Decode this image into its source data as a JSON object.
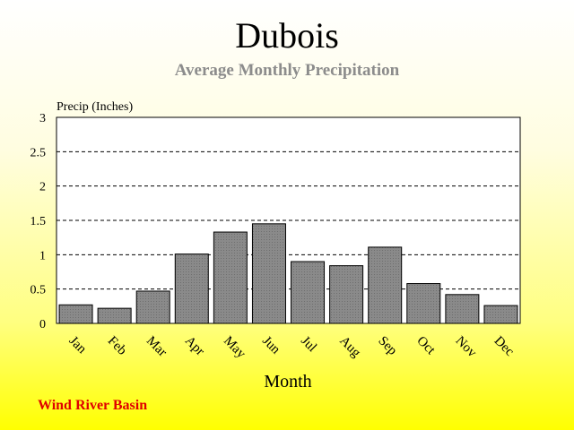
{
  "title": "Dubois",
  "subtitle": "Average Monthly Precipitation",
  "footer": "Wind River Basin",
  "chart_data": {
    "type": "bar",
    "title": "Dubois",
    "subtitle": "Average Monthly Precipitation",
    "xlabel": "Month",
    "ylabel": "Precip (Inches)",
    "ylim": [
      0,
      3
    ],
    "yticks": [
      0,
      0.5,
      1,
      1.5,
      2,
      2.5,
      3
    ],
    "ytick_labels": [
      "0",
      "0.5",
      "1",
      "1.5",
      "2",
      "2.5",
      "3"
    ],
    "grid": true,
    "categories": [
      "Jan",
      "Feb",
      "Mar",
      "Apr",
      "May",
      "Jun",
      "Jul",
      "Aug",
      "Sep",
      "Oct",
      "Nov",
      "Dec"
    ],
    "values": [
      0.27,
      0.22,
      0.47,
      1.01,
      1.33,
      1.45,
      0.9,
      0.84,
      1.11,
      0.58,
      0.42,
      0.26
    ],
    "bar_color": "#8a8a8a"
  }
}
